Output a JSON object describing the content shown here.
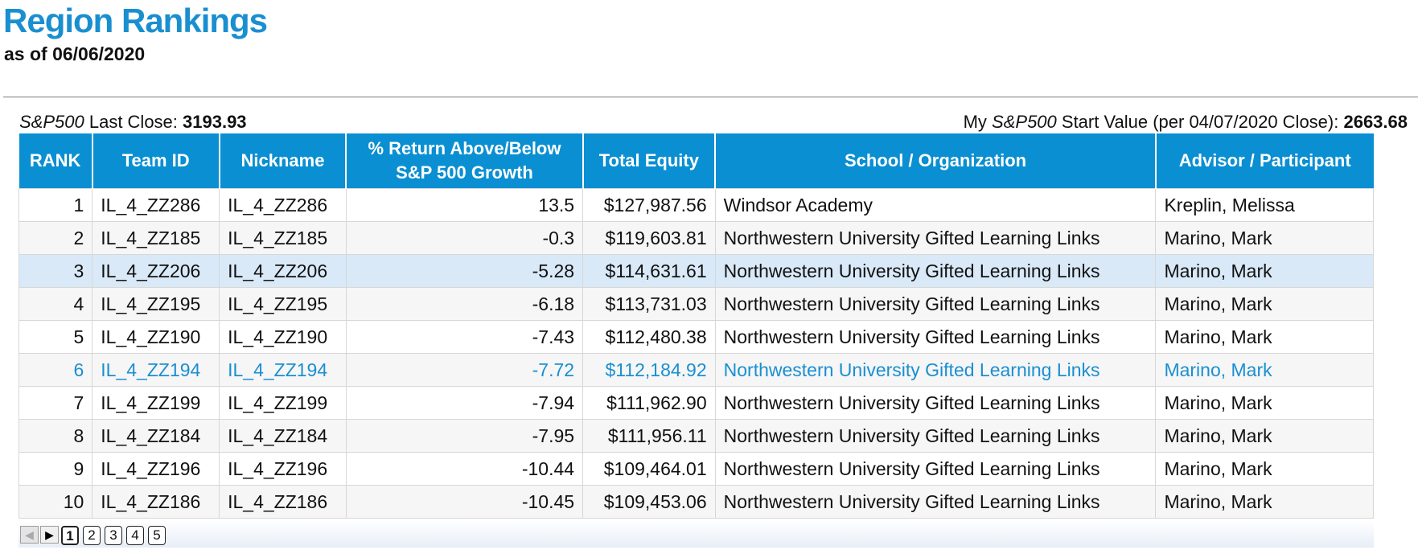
{
  "header": {
    "title": "Region Rankings",
    "subtitle": "as of 06/06/2020"
  },
  "sp": {
    "left_italic": "S&P500",
    "left_label": " Last Close: ",
    "left_value": "3193.93",
    "right_prefix": "My ",
    "right_italic": "S&P500",
    "right_label": " Start Value (per 04/07/2020 Close): ",
    "right_value": "2663.68"
  },
  "table": {
    "columns": {
      "rank": "RANK",
      "team_id": "Team ID",
      "nickname": "Nickname",
      "return_line1": "% Return Above/Below",
      "return_line2": "S&P 500 Growth",
      "equity": "Total Equity",
      "school": "School / Organization",
      "advisor": "Advisor / Participant"
    },
    "rows": [
      {
        "rank": "1",
        "team_id": "IL_4_ZZ286",
        "nickname": "IL_4_ZZ286",
        "return": "13.5",
        "equity": "$127,987.56",
        "school": "Windsor Academy",
        "advisor": "Kreplin, Melissa"
      },
      {
        "rank": "2",
        "team_id": "IL_4_ZZ185",
        "nickname": "IL_4_ZZ185",
        "return": "-0.3",
        "equity": "$119,603.81",
        "school": "Northwestern University Gifted Learning Links",
        "advisor": "Marino, Mark"
      },
      {
        "rank": "3",
        "team_id": "IL_4_ZZ206",
        "nickname": "IL_4_ZZ206",
        "return": "-5.28",
        "equity": "$114,631.61",
        "school": "Northwestern University Gifted Learning Links",
        "advisor": "Marino, Mark"
      },
      {
        "rank": "4",
        "team_id": "IL_4_ZZ195",
        "nickname": "IL_4_ZZ195",
        "return": "-6.18",
        "equity": "$113,731.03",
        "school": "Northwestern University Gifted Learning Links",
        "advisor": "Marino, Mark"
      },
      {
        "rank": "5",
        "team_id": "IL_4_ZZ190",
        "nickname": "IL_4_ZZ190",
        "return": "-7.43",
        "equity": "$112,480.38",
        "school": "Northwestern University Gifted Learning Links",
        "advisor": "Marino, Mark"
      },
      {
        "rank": "6",
        "team_id": "IL_4_ZZ194",
        "nickname": "IL_4_ZZ194",
        "return": "-7.72",
        "equity": "$112,184.92",
        "school": "Northwestern University Gifted Learning Links",
        "advisor": "Marino, Mark"
      },
      {
        "rank": "7",
        "team_id": "IL_4_ZZ199",
        "nickname": "IL_4_ZZ199",
        "return": "-7.94",
        "equity": "$111,962.90",
        "school": "Northwestern University Gifted Learning Links",
        "advisor": "Marino, Mark"
      },
      {
        "rank": "8",
        "team_id": "IL_4_ZZ184",
        "nickname": "IL_4_ZZ184",
        "return": "-7.95",
        "equity": "$111,956.11",
        "school": "Northwestern University Gifted Learning Links",
        "advisor": "Marino, Mark"
      },
      {
        "rank": "9",
        "team_id": "IL_4_ZZ196",
        "nickname": "IL_4_ZZ196",
        "return": "-10.44",
        "equity": "$109,464.01",
        "school": "Northwestern University Gifted Learning Links",
        "advisor": "Marino, Mark"
      },
      {
        "rank": "10",
        "team_id": "IL_4_ZZ186",
        "nickname": "IL_4_ZZ186",
        "return": "-10.45",
        "equity": "$109,453.06",
        "school": "Northwestern University Gifted Learning Links",
        "advisor": "Marino, Mark"
      }
    ],
    "selected_row_rank": "3",
    "highlighted_row_rank": "6",
    "colors": {
      "header_bg": "#0a8fd2",
      "title": "#1a8fd0",
      "highlight_text": "#1a8fd0",
      "selected_bg": "#d9e9f7"
    }
  },
  "pager": {
    "prev_icon": "prev-arrow-icon",
    "next_icon": "next-arrow-icon",
    "prev_glyph": "◀",
    "next_glyph": "▶",
    "pages": [
      "1",
      "2",
      "3",
      "4",
      "5"
    ],
    "current_page": "1"
  }
}
